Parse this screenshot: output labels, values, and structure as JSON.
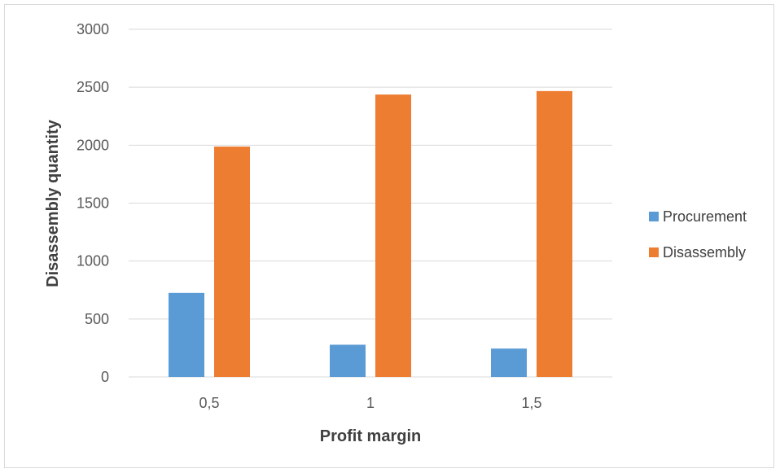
{
  "chart_data": {
    "type": "bar",
    "categories": [
      "0,5",
      "1",
      "1,5"
    ],
    "series": [
      {
        "name": "Procurement",
        "color": "#5b9bd5",
        "values": [
          725,
          278,
          245
        ]
      },
      {
        "name": "Disassembly",
        "color": "#ed7d31",
        "values": [
          1988,
          2437,
          2467
        ]
      }
    ],
    "title": "",
    "xlabel": "Profit margin",
    "ylabel": "Disassembly quantity",
    "ylim": [
      0,
      3000
    ],
    "yticks": [
      0,
      500,
      1000,
      1500,
      2000,
      2500,
      3000
    ],
    "grid": true,
    "legend_position": "right",
    "gridline_color": "#d9d9d9"
  }
}
